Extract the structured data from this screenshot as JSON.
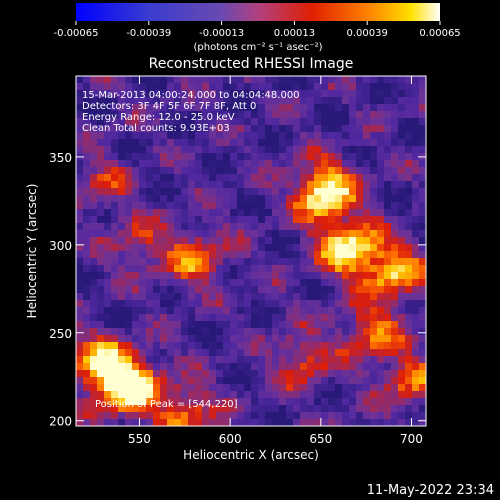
{
  "chart_data": {
    "type": "heatmap",
    "title": "Reconstructed RHESSI Image",
    "xlabel": "Heliocentric X (arcsec)",
    "ylabel": "Heliocentric Y (arcsec)",
    "xlim": [
      515,
      708
    ],
    "ylim": [
      197,
      396
    ],
    "x_ticks": [
      550,
      600,
      650,
      700
    ],
    "y_ticks": [
      200,
      250,
      300,
      350
    ],
    "colorbar": {
      "range": [
        -0.00065,
        0.00065
      ],
      "ticks": [
        -0.00065,
        -0.00039,
        -0.00013,
        0.00013,
        0.00039,
        0.00065
      ],
      "tick_labels": [
        "-0.00065",
        "-0.00039",
        "-0.00013",
        "0.00013",
        "0.00039",
        "0.00065"
      ],
      "unit_label": "(photons cm⁻² s⁻¹ asec⁻²)"
    },
    "annotations": {
      "time_range": "15-Mar-2013 04:00:24.000 to 04:04:48.000",
      "detectors": "Detectors: 3F 4F 5F 6F 7F 8F, Att 0",
      "energy_range": "Energy Range: 12.0 - 25.0 keV",
      "clean_counts": "Clean     Total counts: 9.93E+03",
      "peak": "Position of Peak = [544,220]"
    },
    "peak_position": [
      544,
      220
    ],
    "bright_regions": [
      {
        "x": 544,
        "y": 220,
        "level": 1.0
      },
      {
        "x": 575,
        "y": 205,
        "level": 0.55
      },
      {
        "x": 528,
        "y": 232,
        "level": 0.7
      },
      {
        "x": 652,
        "y": 330,
        "level": 0.95
      },
      {
        "x": 665,
        "y": 298,
        "level": 0.85
      },
      {
        "x": 690,
        "y": 285,
        "level": 0.7
      },
      {
        "x": 678,
        "y": 250,
        "level": 0.55
      },
      {
        "x": 700,
        "y": 222,
        "level": 0.5
      },
      {
        "x": 582,
        "y": 292,
        "level": 0.55
      },
      {
        "x": 550,
        "y": 300,
        "level": 0.35
      },
      {
        "x": 530,
        "y": 335,
        "level": 0.3
      },
      {
        "x": 640,
        "y": 235,
        "level": 0.45
      }
    ]
  },
  "footer": {
    "date": "11-May-2022 23:34"
  }
}
